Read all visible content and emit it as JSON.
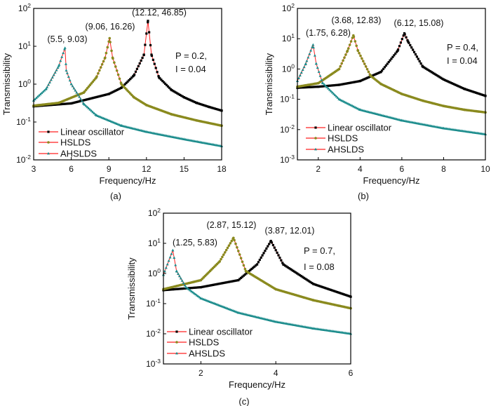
{
  "chart_data": [
    {
      "type": "line",
      "panel_label": "(a)",
      "xlabel": "Frequency/Hz",
      "ylabel": "Transmissibility",
      "xlim": [
        3,
        18
      ],
      "xticks": [
        3,
        6,
        9,
        12,
        15,
        18
      ],
      "yscale": "log",
      "ylim": [
        0.01,
        100
      ],
      "yticks": [
        {
          "base": "10",
          "exp": "-2"
        },
        {
          "base": "10",
          "exp": "-1"
        },
        {
          "base": "10",
          "exp": "0"
        },
        {
          "base": "10",
          "exp": "1"
        },
        {
          "base": "10",
          "exp": "2"
        }
      ],
      "grid": false,
      "legend_position": "bottom-left",
      "params": [
        "P = 0.2,",
        "I = 0.04"
      ],
      "series": [
        {
          "name": "Linear oscillator",
          "marker": "square",
          "color": "#000000",
          "x": [
            3,
            6,
            9,
            10,
            11,
            11.8,
            12.12,
            12.4,
            13,
            14,
            15,
            16,
            17,
            18
          ],
          "y": [
            0.26,
            0.31,
            0.55,
            0.8,
            1.7,
            6,
            46.85,
            6,
            1.5,
            0.7,
            0.45,
            0.32,
            0.25,
            0.2
          ],
          "peak_label": "(12.12, 46.85)"
        },
        {
          "name": "HSLDS",
          "marker": "circle",
          "color": "#8a8a1e",
          "x": [
            3,
            5,
            7,
            8,
            8.7,
            9.06,
            9.3,
            10,
            11,
            12,
            14,
            16,
            18
          ],
          "y": [
            0.27,
            0.32,
            0.6,
            1.5,
            5,
            16.26,
            5,
            1.0,
            0.45,
            0.28,
            0.16,
            0.11,
            0.08
          ],
          "peak_label": "(9.06, 16.26)"
        },
        {
          "name": "AHSLDS",
          "marker": "triangle",
          "color": "#1a8c8c",
          "x": [
            3,
            4,
            5,
            5.5,
            5.6,
            6,
            7,
            8,
            10,
            12,
            15,
            18
          ],
          "y": [
            0.37,
            0.75,
            3,
            9.03,
            2.3,
            1.0,
            0.3,
            0.15,
            0.08,
            0.055,
            0.035,
            0.023
          ],
          "peak_label": "(5.5, 9.03)"
        }
      ]
    },
    {
      "type": "line",
      "panel_label": "(b)",
      "xlabel": "Frequency/Hz",
      "ylabel": "Transmissibility",
      "xlim": [
        1,
        10
      ],
      "xticks": [
        2,
        4,
        6,
        8,
        10
      ],
      "yscale": "log",
      "ylim": [
        0.001,
        100
      ],
      "yticks": [
        {
          "base": "10",
          "exp": "-3"
        },
        {
          "base": "10",
          "exp": "-2"
        },
        {
          "base": "10",
          "exp": "-1"
        },
        {
          "base": "10",
          "exp": "0"
        },
        {
          "base": "10",
          "exp": "1"
        },
        {
          "base": "10",
          "exp": "2"
        }
      ],
      "grid": false,
      "legend_position": "bottom-left",
      "params": [
        "P = 0.4,",
        "I = 0.04"
      ],
      "series": [
        {
          "name": "Linear oscillator",
          "marker": "square",
          "color": "#000000",
          "x": [
            1,
            2,
            3,
            4,
            5,
            5.8,
            6.12,
            6.3,
            7,
            8,
            9,
            10
          ],
          "y": [
            0.24,
            0.26,
            0.3,
            0.4,
            0.8,
            4,
            15.08,
            8,
            1.2,
            0.45,
            0.22,
            0.13
          ],
          "peak_label": "(6.12, 15.08)"
        },
        {
          "name": "HSLDS",
          "marker": "circle",
          "color": "#8a8a1e",
          "x": [
            1,
            2,
            3,
            3.4,
            3.68,
            3.9,
            4.5,
            5,
            6,
            7,
            8,
            9,
            10
          ],
          "y": [
            0.26,
            0.34,
            1.0,
            4,
            12.83,
            4,
            0.6,
            0.32,
            0.15,
            0.09,
            0.06,
            0.045,
            0.037
          ],
          "peak_label": "(3.68, 12.83)"
        },
        {
          "name": "AHSLDS",
          "marker": "triangle",
          "color": "#1a8c8c",
          "x": [
            1,
            1.4,
            1.75,
            1.9,
            2.2,
            3,
            4,
            6,
            8,
            10
          ],
          "y": [
            0.4,
            1.5,
            6.28,
            1.5,
            0.35,
            0.1,
            0.045,
            0.02,
            0.011,
            0.007
          ],
          "peak_label": "(1.75, 6.28)"
        }
      ]
    },
    {
      "type": "line",
      "panel_label": "(c)",
      "xlabel": "Frequency/Hz",
      "ylabel": "Transmissibility",
      "xlim": [
        1,
        6
      ],
      "xticks": [
        2,
        4,
        6
      ],
      "yscale": "log",
      "ylim": [
        0.001,
        100
      ],
      "yticks": [
        {
          "base": "10",
          "exp": "-3"
        },
        {
          "base": "10",
          "exp": "-2"
        },
        {
          "base": "10",
          "exp": "-1"
        },
        {
          "base": "10",
          "exp": "0"
        },
        {
          "base": "10",
          "exp": "1"
        },
        {
          "base": "10",
          "exp": "2"
        }
      ],
      "grid": false,
      "legend_position": "bottom-left",
      "params": [
        "P = 0.7,",
        "I = 0.08"
      ],
      "series": [
        {
          "name": "Linear oscillator",
          "marker": "square",
          "color": "#000000",
          "x": [
            1,
            2,
            3,
            3.5,
            3.87,
            4.2,
            5,
            6
          ],
          "y": [
            0.28,
            0.35,
            0.6,
            2,
            12.01,
            2,
            0.45,
            0.17
          ],
          "peak_label": "(3.87, 12.01)"
        },
        {
          "name": "HSLDS",
          "marker": "circle",
          "color": "#8a8a1e",
          "x": [
            1,
            2,
            2.5,
            2.87,
            3.2,
            4,
            5,
            6
          ],
          "y": [
            0.3,
            0.6,
            2.5,
            15.12,
            1.2,
            0.3,
            0.13,
            0.07
          ],
          "peak_label": "(2.87, 15.12)"
        },
        {
          "name": "AHSLDS",
          "marker": "triangle",
          "color": "#1a8c8c",
          "x": [
            1,
            1.25,
            1.35,
            1.6,
            2,
            3,
            4,
            5,
            6
          ],
          "y": [
            0.9,
            5.83,
            1.2,
            0.35,
            0.15,
            0.05,
            0.025,
            0.015,
            0.01
          ],
          "peak_label": "(1.25, 5.83)"
        }
      ]
    }
  ],
  "line_color": "#ff2020"
}
